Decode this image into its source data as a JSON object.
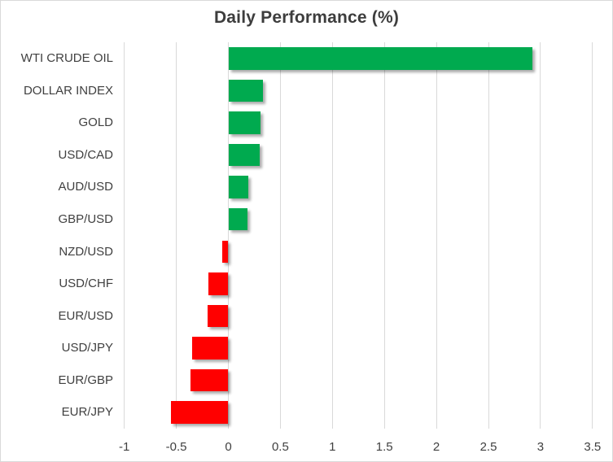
{
  "window": {
    "background_color": "#ffffff",
    "border_color": "#d9d9d9"
  },
  "chart_data": {
    "type": "bar",
    "orientation": "horizontal",
    "title": "Daily Performance (%)",
    "categories": [
      "WTI CRUDE OIL",
      "DOLLAR INDEX",
      "GOLD",
      "USD/CAD",
      "AUD/USD",
      "GBP/USD",
      "NZD/USD",
      "USD/CHF",
      "EUR/USD",
      "USD/JPY",
      "EUR/GBP",
      "EUR/JPY"
    ],
    "values": [
      2.92,
      0.33,
      0.31,
      0.3,
      0.19,
      0.18,
      -0.06,
      -0.19,
      -0.2,
      -0.35,
      -0.36,
      -0.55
    ],
    "xlabel": "",
    "ylabel": "",
    "xlim": [
      -1,
      3.5
    ],
    "xticks": [
      -1,
      -0.5,
      0,
      0.5,
      1,
      1.5,
      2,
      2.5,
      3,
      3.5
    ],
    "xtick_labels": [
      "-1",
      "-0.5",
      "0",
      "0.5",
      "1",
      "1.5",
      "2",
      "2.5",
      "3",
      "3.5"
    ],
    "grid": "vertical-only",
    "legend": "none",
    "colors": {
      "positive_bar": "#00aa4f",
      "negative_bar": "#ff0000",
      "gridline": "#d9d9d9",
      "text": "#404040",
      "title": "#3d3d3d"
    }
  }
}
